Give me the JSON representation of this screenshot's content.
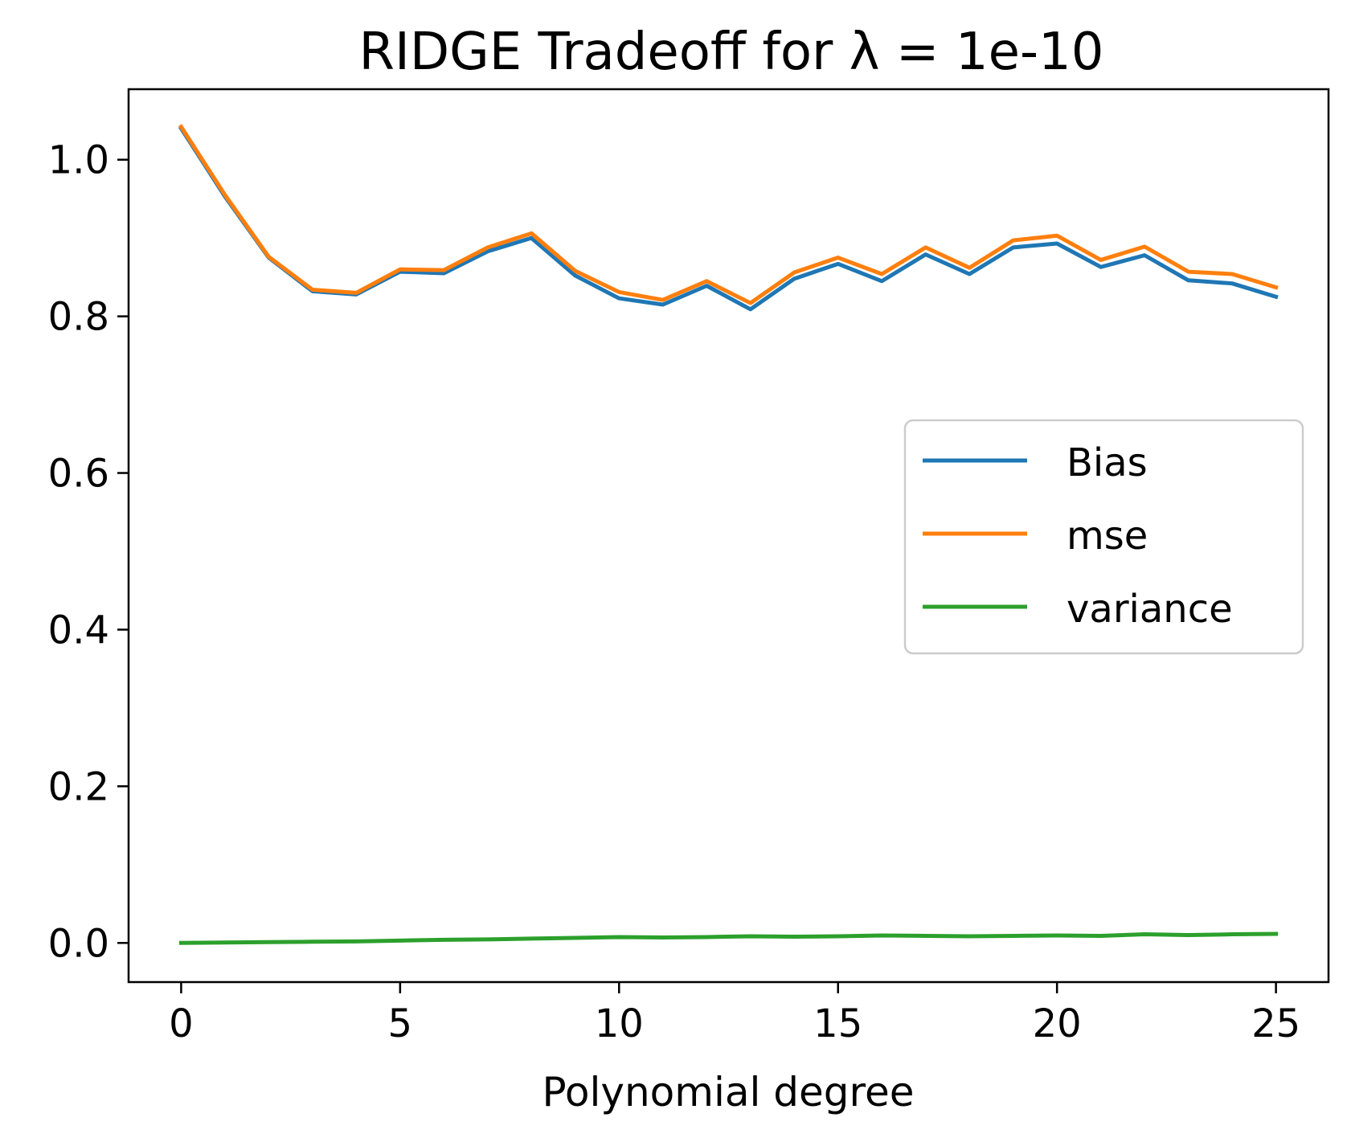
{
  "chart_data": {
    "type": "line",
    "title": "RIDGE Tradeoff for λ = 1e-10",
    "xlabel": "Polynomial degree",
    "ylabel": "",
    "xlim": [
      -1.2,
      26.2
    ],
    "ylim": [
      -0.05,
      1.09
    ],
    "x_ticks": [
      0,
      5,
      10,
      15,
      20,
      25
    ],
    "x_tick_labels": [
      "0",
      "5",
      "10",
      "15",
      "20",
      "25"
    ],
    "y_ticks": [
      0.0,
      0.2,
      0.4,
      0.6,
      0.8,
      1.0
    ],
    "y_tick_labels": [
      "0.0",
      "0.2",
      "0.4",
      "0.6",
      "0.8",
      "1.0"
    ],
    "grid": false,
    "legend_position": "center-right",
    "x": [
      0,
      1,
      2,
      3,
      4,
      5,
      6,
      7,
      8,
      9,
      10,
      11,
      12,
      13,
      14,
      15,
      16,
      17,
      18,
      19,
      20,
      21,
      22,
      23,
      24,
      25
    ],
    "series": [
      {
        "name": "Bias",
        "color": "#1f77b4",
        "values": [
          1.04,
          0.953,
          0.875,
          0.832,
          0.828,
          0.857,
          0.855,
          0.883,
          0.9,
          0.852,
          0.823,
          0.815,
          0.839,
          0.809,
          0.848,
          0.867,
          0.845,
          0.879,
          0.854,
          0.888,
          0.893,
          0.863,
          0.878,
          0.846,
          0.842,
          0.825
        ]
      },
      {
        "name": "mse",
        "color": "#ff7f0e",
        "values": [
          1.042,
          0.955,
          0.876,
          0.834,
          0.83,
          0.86,
          0.859,
          0.888,
          0.906,
          0.858,
          0.831,
          0.821,
          0.845,
          0.817,
          0.856,
          0.875,
          0.854,
          0.888,
          0.862,
          0.897,
          0.903,
          0.872,
          0.889,
          0.857,
          0.854,
          0.837
        ]
      },
      {
        "name": "variance",
        "color": "#2ca02c",
        "values": [
          0.0,
          0.0005,
          0.001,
          0.0015,
          0.002,
          0.003,
          0.004,
          0.0045,
          0.0055,
          0.0065,
          0.0075,
          0.007,
          0.0075,
          0.0085,
          0.008,
          0.0085,
          0.0095,
          0.009,
          0.0085,
          0.009,
          0.0095,
          0.009,
          0.011,
          0.01,
          0.011,
          0.0115
        ]
      }
    ]
  }
}
